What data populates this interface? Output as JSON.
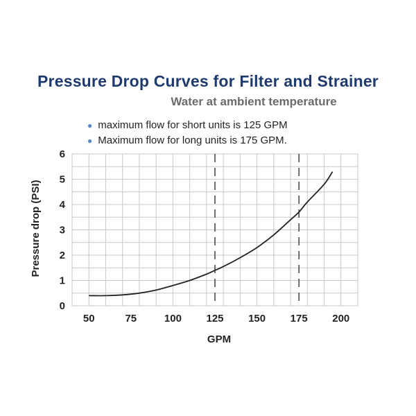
{
  "header": {
    "title": "Pressure Drop Curves for Filter and Strainer",
    "subtitle": "Water at ambient temperature"
  },
  "notes": [
    "maximum flow for short units is 125 GPM",
    "Maximum flow for long units is 175 GPM."
  ],
  "colors": {
    "title": "#1f3b6e",
    "subtitle": "#6b6b6b",
    "bullet": "#5b86c5",
    "grid": "#c8c8c8",
    "curve": "#222222"
  },
  "chart_data": {
    "type": "line",
    "title": "Pressure Drop Curves for Filter and Strainer",
    "subtitle": "Water at ambient temperature",
    "xlabel": "GPM",
    "ylabel": "Pressure drop (PSI)",
    "xlim": [
      40,
      210
    ],
    "ylim": [
      0,
      6
    ],
    "xticks": [
      50,
      75,
      100,
      125,
      150,
      175,
      200
    ],
    "yticks": [
      0,
      1,
      2,
      3,
      4,
      5,
      6
    ],
    "grid": true,
    "series": [
      {
        "x": [
          50,
          60,
          70,
          80,
          90,
          100,
          110,
          120,
          125,
          130,
          140,
          150,
          160,
          170,
          175,
          180,
          190,
          195
        ],
        "y": [
          0.4,
          0.4,
          0.43,
          0.5,
          0.62,
          0.8,
          1.0,
          1.25,
          1.4,
          1.55,
          1.9,
          2.3,
          2.8,
          3.4,
          3.7,
          4.1,
          4.8,
          5.3
        ]
      }
    ],
    "reference_lines": [
      {
        "x": 125,
        "style": "dashed"
      },
      {
        "x": 175,
        "style": "dashed"
      }
    ]
  }
}
